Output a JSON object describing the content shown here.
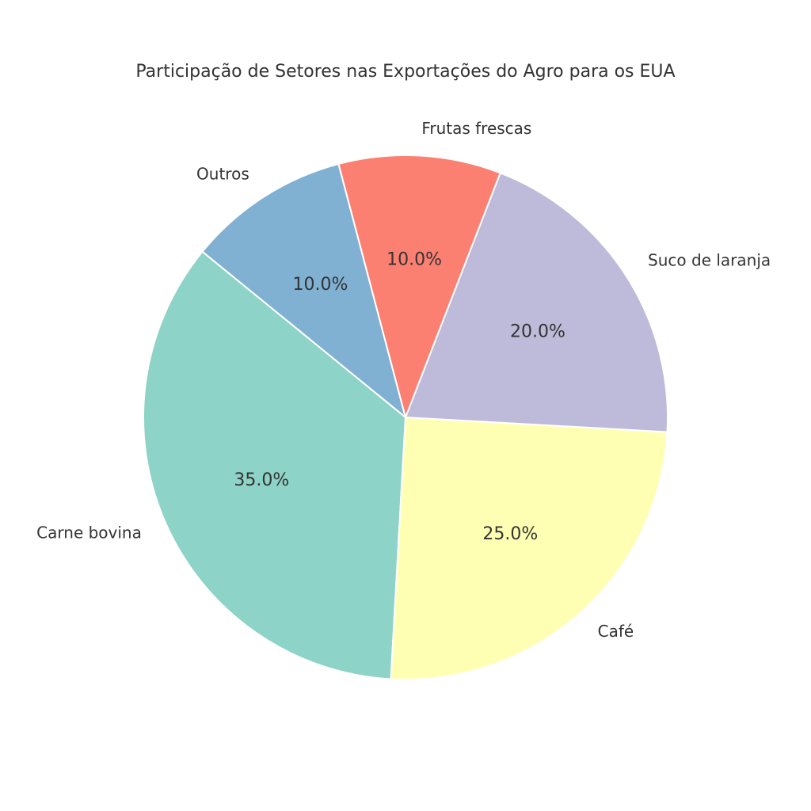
{
  "chart_data": {
    "type": "pie",
    "title": "Participação de Setores nas Exportações do Agro para os EUA",
    "start_angle_deg": 104.8,
    "direction": "counterclockwise",
    "slices": [
      {
        "label": "Outros",
        "value": 10.0,
        "pct_label": "10.0%",
        "color": "#80b1d3"
      },
      {
        "label": "Carne bovina",
        "value": 35.0,
        "pct_label": "35.0%",
        "color": "#8dd3c7"
      },
      {
        "label": "Café",
        "value": 25.0,
        "pct_label": "25.0%",
        "color": "#ffffb3"
      },
      {
        "label": "Suco de laranja",
        "value": 20.0,
        "pct_label": "20.0%",
        "color": "#bebada"
      },
      {
        "label": "Frutas frescas",
        "value": 10.0,
        "pct_label": "10.0%",
        "color": "#fb8072"
      }
    ]
  }
}
